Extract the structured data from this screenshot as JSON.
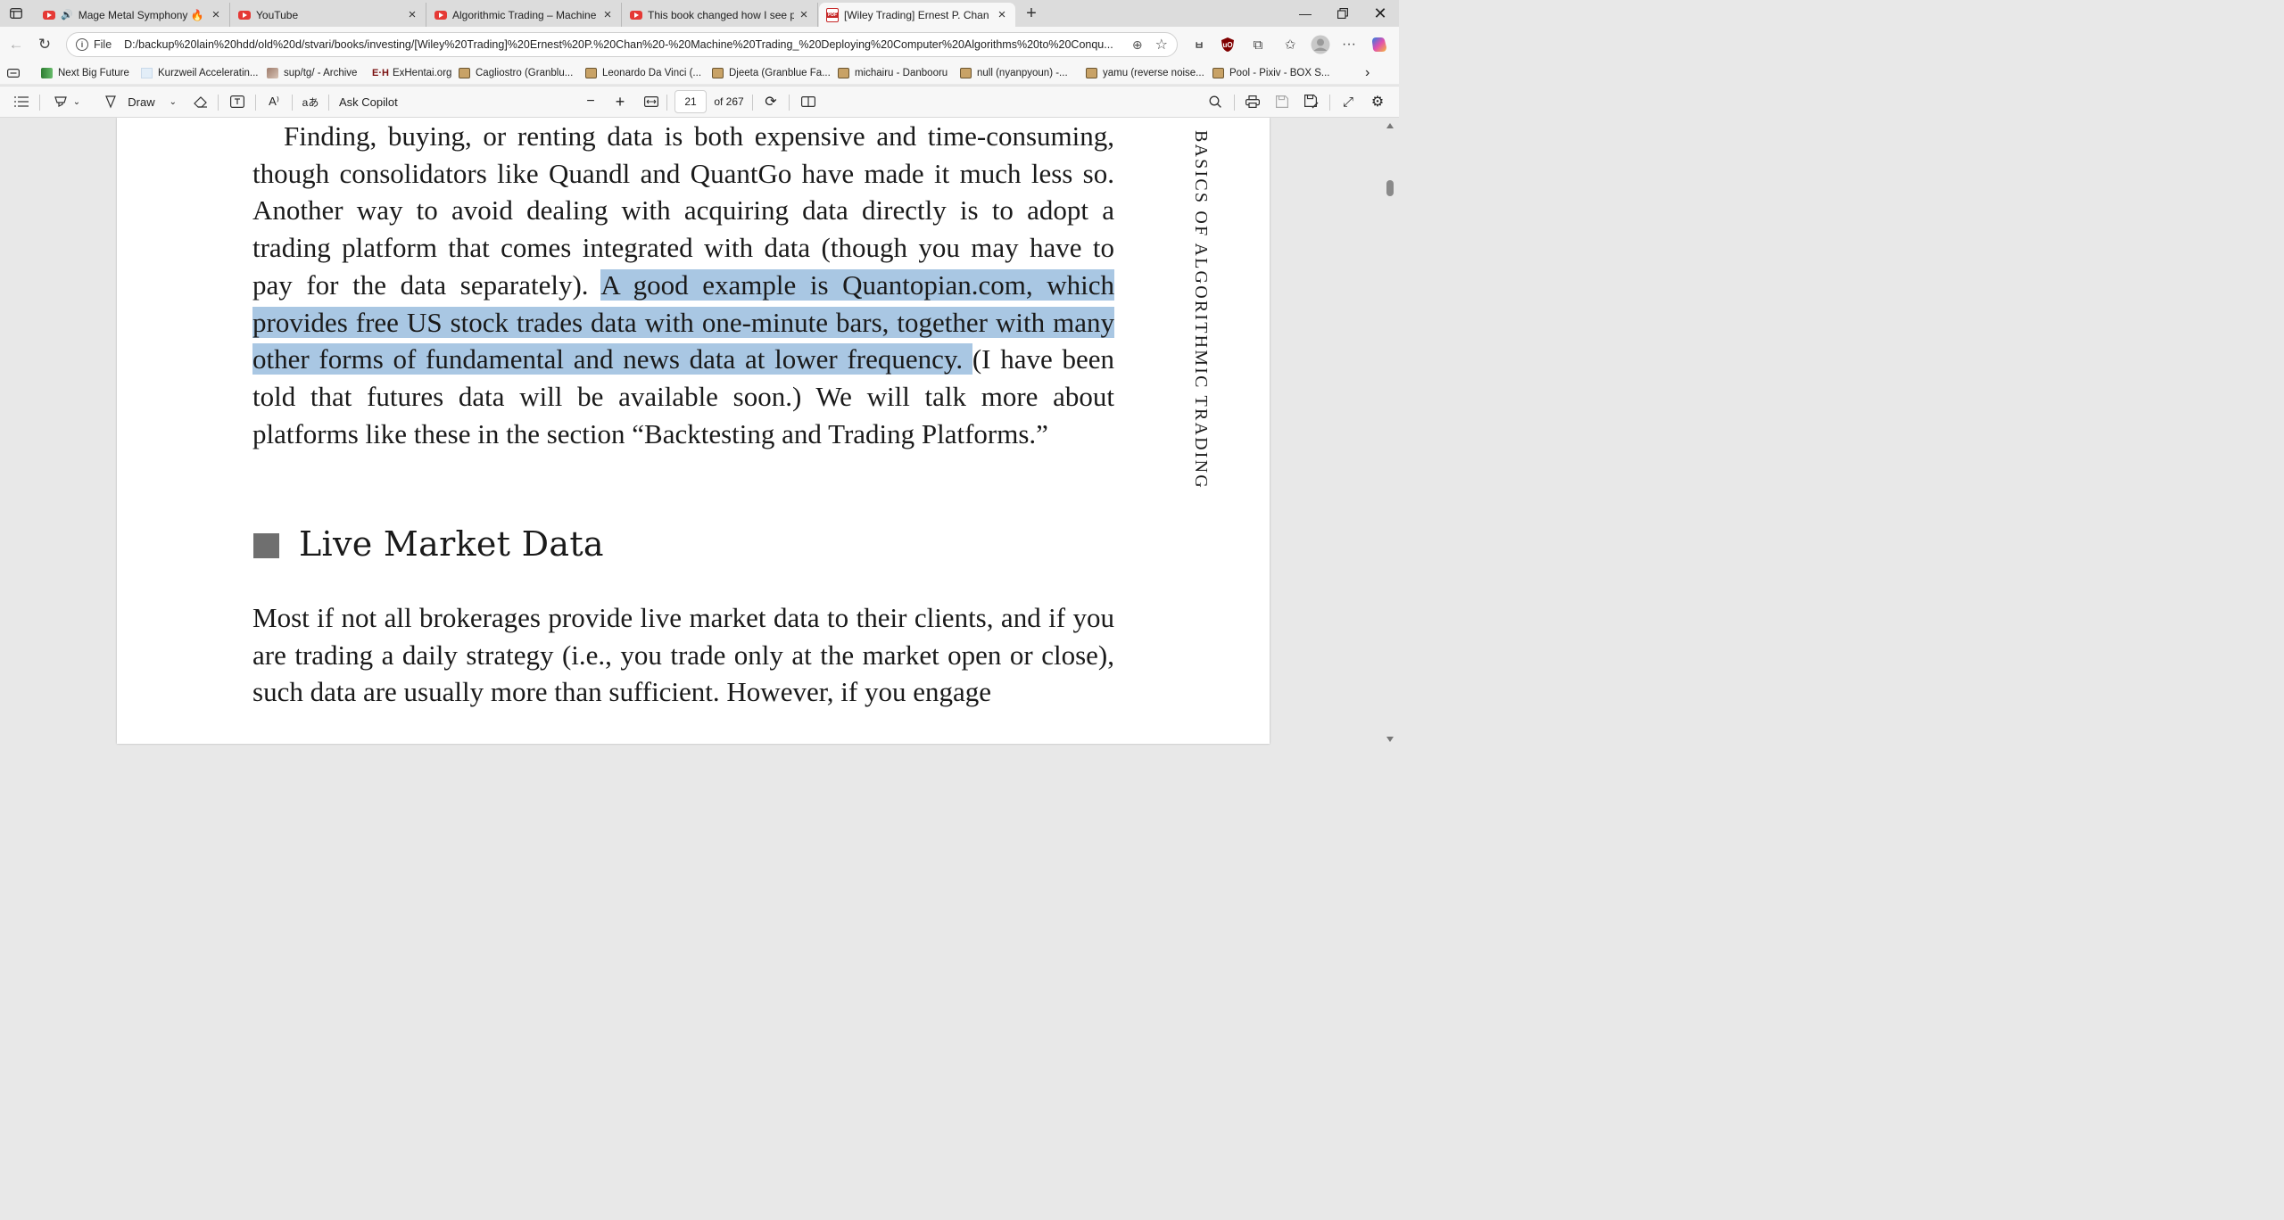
{
  "tabs": [
    {
      "title": "Mage Metal Symphony 🔥",
      "favicon": "youtube-icon",
      "audio": true,
      "active": false
    },
    {
      "title": "YouTube",
      "favicon": "youtube-icon",
      "active": false
    },
    {
      "title": "Algorithmic Trading – Machine Le",
      "favicon": "youtube-icon",
      "active": false
    },
    {
      "title": "This book changed how I see prof",
      "favicon": "youtube-icon",
      "active": false
    },
    {
      "title": "[Wiley Trading] Ernest P. Chan - M",
      "favicon": "pdf-icon",
      "active": true
    }
  ],
  "address": {
    "scheme": "File",
    "url": "D:/backup%20lain%20hdd/old%20d/stvari/books/investing/[Wiley%20Trading]%20Ernest%20P.%20Chan%20-%20Machine%20Trading_%20Deploying%20Computer%20Algorithms%20to%20Conqu..."
  },
  "favorites": [
    {
      "label": "Next Big Future",
      "icon": "green"
    },
    {
      "label": "Kurzweil Acceleratin...",
      "icon": "pale"
    },
    {
      "label": "sup/tg/ - Archive",
      "icon": "img"
    },
    {
      "label": "ExHentai.org",
      "icon": "eh"
    },
    {
      "label": "Cagliostro (Granblu...",
      "icon": "folder"
    },
    {
      "label": "Leonardo Da Vinci (...",
      "icon": "folder"
    },
    {
      "label": "Djeeta (Granblue Fa...",
      "icon": "folder"
    },
    {
      "label": "michairu - Danbooru",
      "icon": "folder"
    },
    {
      "label": "null (nyanpyoun) -...",
      "icon": "folder"
    },
    {
      "label": "yamu (reverse noise...",
      "icon": "folder"
    },
    {
      "label": "Pool - Pixiv - BOX S...",
      "icon": "folder"
    }
  ],
  "pdf_toolbar": {
    "draw_label": "Draw",
    "ask_copilot_label": "Ask Copilot",
    "page_number": "21",
    "page_total": "of 267"
  },
  "document": {
    "para1_before": "Finding, buying, or renting data is both expensive and time-consuming, though consolidators like Quandl and QuantGo have made it much less so. Another way to avoid dealing with acquiring data directly is to adopt a trading platform that comes integrated with data (though you may have to pay for the data separately). ",
    "para1_highlight": "A good example is Quantopian.com, which provides free US stock trades data with one-minute bars, together with many other forms of fundamental and news data at lower frequency. ",
    "para1_after": "(I have been told that futures data will be available soon.) We will talk more about platforms like these in the section “Backtesting and Trading Platforms.”",
    "section_heading": "Live Market Data",
    "para2": "Most if not all brokerages provide live market data to their clients, and if you are trading a daily strategy (i.e., you trade only at the market open or close), such data are usually more than sufficient. However, if you engage",
    "running_head": "BASICS OF ALGORITHMIC TRADING"
  },
  "colors": {
    "highlight": "#a9c7e3",
    "section_marker": "#6f6f6f"
  }
}
